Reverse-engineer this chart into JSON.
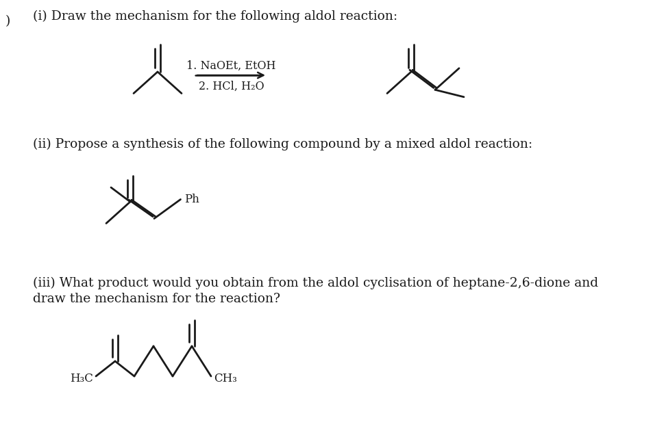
{
  "bg_color": "#ffffff",
  "text_color": "#1a1a1a",
  "line_color": "#1a1a1a",
  "title_i": "(i) Draw the mechanism for the following aldol reaction:",
  "title_ii": "(ii) Propose a synthesis of the following compound by a mixed aldol reaction:",
  "title_iii_line1": "(iii) What product would you obtain from the aldol cyclisation of heptane-2,6-dione and",
  "title_iii_line2": "draw the mechanism for the reaction?",
  "reagents_line1": "1. NaOEt, EtOH",
  "reagents_line2": "2. HCl, H₂O",
  "label_ph": "Ph",
  "label_h3c": "H₃C",
  "label_ch3": "CH₃",
  "prefix": ")",
  "lw": 2.0,
  "font_size_text": 13.5,
  "font_size_label": 12.0,
  "font_size_reagent": 11.5
}
